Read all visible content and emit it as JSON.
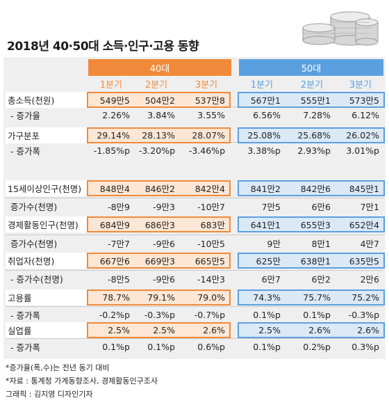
{
  "title": "2018년 40·50대 소득·인구·고용 동향",
  "header": {
    "group_40": "40대",
    "group_50": "50대",
    "quarters_40": [
      "1분기",
      "2분기",
      "3분기"
    ],
    "quarters_50": [
      "1분기",
      "2분기",
      "3분기"
    ]
  },
  "rows": [
    {
      "label": "총소득(천원)",
      "v40": [
        "549만5",
        "504만2",
        "537만8"
      ],
      "v50": [
        "567만1",
        "555만1",
        "573만5"
      ]
    },
    {
      "label": "- 증가율",
      "v40": [
        "2.26%",
        "3.84%",
        "3.55%"
      ],
      "v50": [
        "6.56%",
        "7.28%",
        "6.12%"
      ]
    },
    {
      "label": "가구분포",
      "v40": [
        "29.14%",
        "28.13%",
        "28.07%"
      ],
      "v50": [
        "25.08%",
        "25.68%",
        "26.02%"
      ]
    },
    {
      "label": "- 증가폭",
      "v40": [
        "-1.85%p",
        "-3.20%p",
        "-3.46%p"
      ],
      "v50": [
        "3.38%p",
        "2.93%p",
        "3.01%p"
      ]
    },
    {
      "label": "15세이상인구(천명)",
      "v40": [
        "848만4",
        "846만2",
        "842만4"
      ],
      "v50": [
        "841만2",
        "842만6",
        "845만1"
      ]
    },
    {
      "label": "증가수(천명)",
      "v40": [
        "-8만9",
        "-9만3",
        "-10만7"
      ],
      "v50": [
        "7만5",
        "6만6",
        "7만1"
      ]
    },
    {
      "label": "경제활동인구(천명)",
      "v40": [
        "684만9",
        "686만3",
        "683만"
      ],
      "v50": [
        "641만1",
        "655만3",
        "652만4"
      ]
    },
    {
      "label": "증가수(천명)",
      "v40": [
        "-7만7",
        "-9만6",
        "-10만5"
      ],
      "v50": [
        "9만",
        "8만1",
        "4만7"
      ]
    },
    {
      "label": "취업자(천명)",
      "v40": [
        "667만6",
        "669만3",
        "665만5"
      ],
      "v50": [
        "625만",
        "638만1",
        "635만5"
      ]
    },
    {
      "label": "- 증가수(천명)",
      "v40": [
        "-8만5",
        "-9만6",
        "-14만3"
      ],
      "v50": [
        "6만7",
        "6만2",
        "2만6"
      ]
    },
    {
      "label": "고용률",
      "v40": [
        "78.7%",
        "79.1%",
        "79.0%"
      ],
      "v50": [
        "74.3%",
        "75.7%",
        "75.2%"
      ]
    },
    {
      "label": "- 증가폭",
      "v40": [
        "-0.2%p",
        "-0.3%p",
        "-0.7%p"
      ],
      "v50": [
        "0.1%p",
        "0.1%p",
        "-0.3%p"
      ]
    },
    {
      "label": "실업률",
      "v40": [
        "2.5%",
        "2.5%",
        "2.6%"
      ],
      "v50": [
        "2.5%",
        "2.6%",
        "2.6%"
      ]
    },
    {
      "label": "- 증가폭",
      "v40": [
        "0.1%p",
        "0.1%p",
        "0.6%p"
      ],
      "v50": [
        "0.1%p",
        "0.2%p",
        "0.3%p"
      ]
    }
  ],
  "notes": [
    "*증가율(폭,수)는 전년 동기 대비",
    "*자료 : 통계청 가계동향조사, 경제활동인구조사",
    "그래픽 : 김지영 디자인기자"
  ],
  "colors": {
    "orange_accent": "#f08a3a",
    "orange_fill": "#fde6d4",
    "blue_accent": "#5aa0e0",
    "blue_fill": "#dbe9f7",
    "card_bg": "#efefef"
  }
}
